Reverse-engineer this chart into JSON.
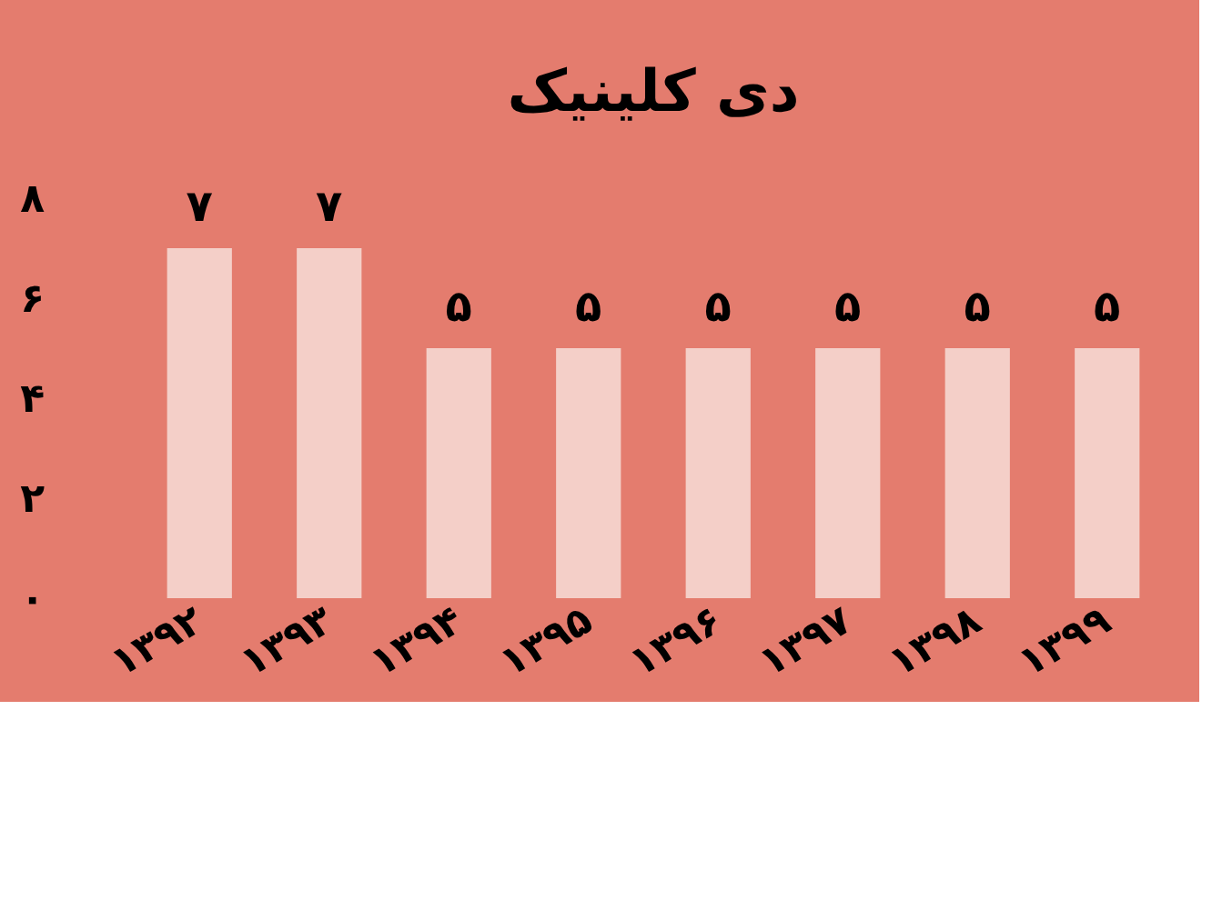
{
  "chart_data": {
    "type": "bar",
    "title": "دی کلینیک",
    "categories": [
      "۱۳۹۲",
      "۱۳۹۳",
      "۱۳۹۴",
      "۱۳۹۵",
      "۱۳۹۶",
      "۱۳۹۷",
      "۱۳۹۸",
      "۱۳۹۹"
    ],
    "values": [
      7,
      7,
      5,
      5,
      5,
      5,
      5,
      5
    ],
    "value_labels": [
      "۷",
      "۷",
      "۵",
      "۵",
      "۵",
      "۵",
      "۵",
      "۵"
    ],
    "color": "#f4cfc8",
    "ylim": [
      0,
      8
    ],
    "yticks": [
      {
        "value": 0,
        "label": "۰"
      },
      {
        "value": 2,
        "label": "۲"
      },
      {
        "value": 4,
        "label": "۴"
      },
      {
        "value": 6,
        "label": "۶"
      },
      {
        "value": 8,
        "label": "۸"
      }
    ],
    "grid": false
  }
}
